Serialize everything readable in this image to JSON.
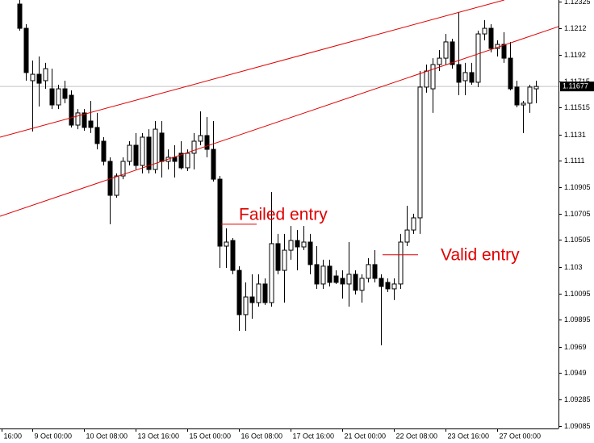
{
  "chart_data": {
    "type": "candlestick",
    "open": [
      1.12306,
      1.12121,
      1.11721,
      1.1177,
      1.11721,
      1.11659,
      1.11536,
      1.11659,
      1.1161,
      1.11382,
      1.11475,
      1.11413,
      1.11364,
      1.11259,
      1.11105,
      1.10846,
      1.10994,
      1.11105,
      1.11228,
      1.11074,
      1.1129,
      1.11043,
      1.11321,
      1.11105,
      1.11136,
      1.11167,
      1.11056,
      1.11167,
      1.11259,
      1.11302,
      1.11197,
      1.10969,
      1.10458,
      1.10501,
      1.10273,
      1.09935,
      1.1007,
      1.10027,
      1.10169,
      1.10027,
      1.10477,
      1.10273,
      1.10427,
      1.10501,
      1.10452,
      1.10489,
      1.10317,
      1.10169,
      1.10305,
      1.1023,
      1.10212,
      1.10169,
      1.10243,
      1.10121,
      1.10212,
      1.10317,
      1.10212,
      1.10181,
      1.10132,
      1.10169,
      1.10489,
      1.10581,
      1.10674,
      1.11672,
      1.11659,
      1.11844,
      1.11893,
      1.12017,
      1.11844,
      1.11721,
      1.11783,
      1.11709,
      1.12078,
      1.12121,
      1.11967,
      1.11998,
      1.11893,
      1.11672,
      1.11536,
      1.11549,
      1.11659
    ],
    "high": [
      1.12337,
      1.12152,
      1.11875,
      1.11906,
      1.11857,
      1.11813,
      1.1169,
      1.11721,
      1.11647,
      1.11505,
      1.11505,
      1.11567,
      1.11475,
      1.1129,
      1.11136,
      1.11013,
      1.11136,
      1.11259,
      1.11321,
      1.11321,
      1.11351,
      1.11413,
      1.11413,
      1.11197,
      1.11228,
      1.11259,
      1.11197,
      1.11321,
      1.11487,
      1.11444,
      1.11413,
      1.10994,
      1.10594,
      1.1052,
      1.10305,
      1.10181,
      1.10243,
      1.10243,
      1.10212,
      1.10871,
      1.10551,
      1.10551,
      1.10612,
      1.10581,
      1.10612,
      1.10551,
      1.10458,
      1.10354,
      1.10354,
      1.10273,
      1.10273,
      1.10489,
      1.10273,
      1.10243,
      1.10366,
      1.10427,
      1.10243,
      1.10212,
      1.10212,
      1.10551,
      1.10766,
      1.10705,
      1.11795,
      1.11844,
      1.11893,
      1.11955,
      1.12078,
      1.12041,
      1.12245,
      1.11857,
      1.11857,
      1.12103,
      1.12183,
      1.12152,
      1.12029,
      1.12091,
      1.12017,
      1.11721,
      1.11567,
      1.1169,
      1.11721
    ],
    "low": [
      1.12103,
      1.11721,
      1.11333,
      1.11524,
      1.11659,
      1.11505,
      1.11505,
      1.11549,
      1.11364,
      1.11351,
      1.11339,
      1.11321,
      1.11197,
      1.11074,
      1.10625,
      1.10828,
      1.10969,
      1.11074,
      1.11043,
      1.11013,
      1.11013,
      1.11013,
      1.10982,
      1.11043,
      1.10982,
      1.11043,
      1.11031,
      1.11043,
      1.11228,
      1.11136,
      1.10951,
      1.10292,
      1.10292,
      1.10243,
      1.09811,
      1.09811,
      1.09904,
      1.09996,
      1.10009,
      1.09996,
      1.10243,
      1.10027,
      1.10354,
      1.10273,
      1.10427,
      1.10243,
      1.10132,
      1.10132,
      1.1015,
      1.10169,
      1.10058,
      1.09996,
      1.10089,
      1.10027,
      1.10181,
      1.10181,
      1.09701,
      1.10107,
      1.10046,
      1.10132,
      1.10458,
      1.10551,
      1.10551,
      1.11629,
      1.11475,
      1.11795,
      1.11844,
      1.11813,
      1.1161,
      1.1161,
      1.1169,
      1.11672,
      1.12029,
      1.11937,
      1.11906,
      1.11857,
      1.11647,
      1.11518,
      1.11321,
      1.11475,
      1.11549
    ],
    "close": [
      1.12121,
      1.11783,
      1.1177,
      1.11702,
      1.11813,
      1.11536,
      1.11659,
      1.11586,
      1.11382,
      1.11475,
      1.11364,
      1.11364,
      1.11241,
      1.11105,
      1.10846,
      1.10994,
      1.11105,
      1.11228,
      1.11074,
      1.1129,
      1.11043,
      1.11351,
      1.11105,
      1.11136,
      1.11105,
      1.11056,
      1.11167,
      1.11259,
      1.11302,
      1.11197,
      1.10969,
      1.10458,
      1.10489,
      1.10273,
      1.09935,
      1.1007,
      1.10027,
      1.10169,
      1.10027,
      1.10477,
      1.10273,
      1.10427,
      1.10501,
      1.10452,
      1.10489,
      1.10317,
      1.10169,
      1.10305,
      1.10181,
      1.10181,
      1.10169,
      1.10243,
      1.10121,
      1.10212,
      1.10317,
      1.10212,
      1.1015,
      1.10132,
      1.10169,
      1.10489,
      1.10581,
      1.10674,
      1.11672,
      1.11795,
      1.11844,
      1.11893,
      1.12017,
      1.11844,
      1.11709,
      1.11783,
      1.11709,
      1.12078,
      1.12121,
      1.11967,
      1.11998,
      1.11893,
      1.11659,
      1.11536,
      1.11549,
      1.11672,
      1.11677
    ],
    "current_price": 1.11677,
    "ylim": [
      1.09066,
      1.12337
    ],
    "yticks": [
      1.12325,
      1.1212,
      1.1192,
      1.11715,
      1.11515,
      1.1131,
      1.1111,
      1.10905,
      1.10705,
      1.10505,
      1.103,
      1.10095,
      1.09895,
      1.0969,
      1.0949,
      1.09285,
      1.09085
    ],
    "xlim": [
      -3,
      83.5
    ],
    "xticks": [
      {
        "value": -2.75,
        "label": "16:00"
      },
      {
        "value": 2,
        "label": "9 Oct 00:00"
      },
      {
        "value": 10,
        "label": "10 Oct 08:00"
      },
      {
        "value": 18,
        "label": "13 Oct 16:00"
      },
      {
        "value": 26,
        "label": "15 Oct 00:00"
      },
      {
        "value": 34,
        "label": "16 Oct 08:00"
      },
      {
        "value": 42,
        "label": "17 Oct 16:00"
      },
      {
        "value": 50,
        "label": "21 Oct 00:00"
      },
      {
        "value": 58,
        "label": "22 Oct 08:00"
      },
      {
        "value": 66,
        "label": "23 Oct 16:00"
      },
      {
        "value": 74,
        "label": "27 Oct 00:00"
      }
    ],
    "trendlines": [
      {
        "x": [
          -3,
          75.1
        ],
        "y": [
          1.1129,
          1.12337
        ],
        "color": "#e00000"
      },
      {
        "x": [
          -3,
          83.5
        ],
        "y": [
          1.10686,
          1.12134
        ],
        "color": "#e00000"
      }
    ],
    "annotations": [
      {
        "text": "Failed entry",
        "x": 31,
        "y": 1.10625,
        "color": "#e00000"
      },
      {
        "text": "Valid entry",
        "x": 56,
        "y": 1.10392,
        "color": "#e00000"
      }
    ]
  }
}
